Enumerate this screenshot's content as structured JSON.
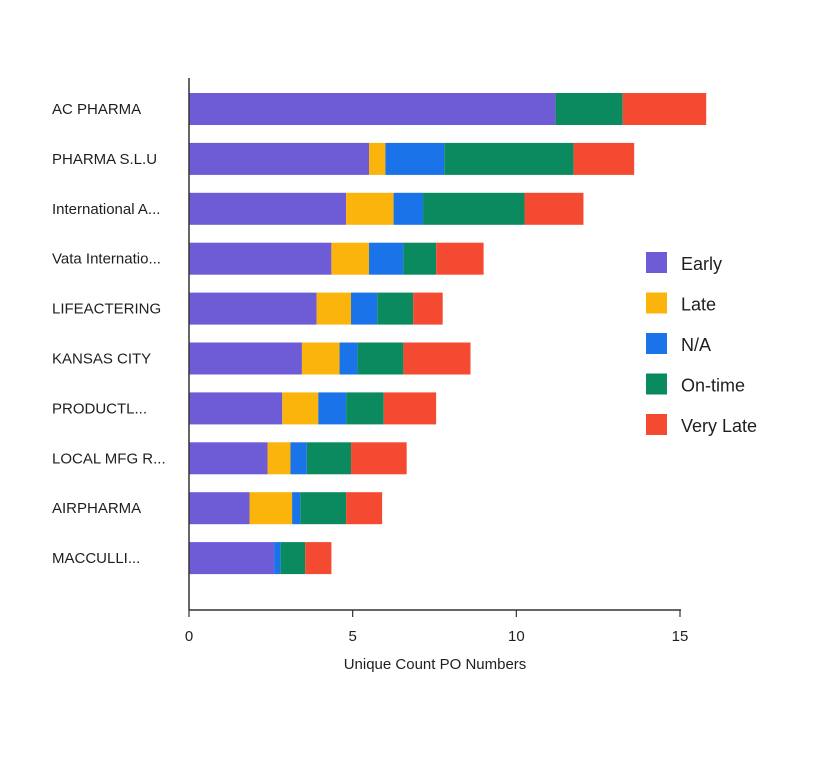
{
  "chart_data": {
    "type": "bar",
    "orientation": "horizontal",
    "stacked": true,
    "categories": [
      "AC PHARMA",
      "PHARMA S.L.U",
      "International A...",
      "Vata Internatio...",
      "LIFEACTERING",
      "KANSAS CITY",
      "PRODUCTL...",
      "LOCAL MFG R...",
      "AIRPHARMA",
      "MACCULLI..."
    ],
    "series": [
      {
        "name": "Early",
        "color": "#6e5bd6",
        "values": [
          11.2,
          5.5,
          4.8,
          4.35,
          3.9,
          3.45,
          2.85,
          2.4,
          1.85,
          2.6
        ]
      },
      {
        "name": "Late",
        "color": "#fbb40b",
        "values": [
          0,
          0.5,
          1.45,
          1.15,
          1.05,
          1.15,
          1.1,
          0.7,
          1.3,
          0
        ]
      },
      {
        "name": "N/A",
        "color": "#1a73e8",
        "values": [
          0,
          1.8,
          0.9,
          1.05,
          0.8,
          0.55,
          0.85,
          0.5,
          0.25,
          0.2
        ]
      },
      {
        "name": "On-time",
        "color": "#0b8a5f",
        "values": [
          2.05,
          3.95,
          3.1,
          1.0,
          1.1,
          1.4,
          1.15,
          1.35,
          1.4,
          0.75
        ]
      },
      {
        "name": "Very Late",
        "color": "#f44a31",
        "values": [
          2.55,
          1.85,
          1.8,
          1.45,
          0.9,
          2.05,
          1.6,
          1.7,
          1.1,
          0.8
        ]
      }
    ],
    "xlabel": "Unique Count PO Numbers",
    "ylabel": "",
    "xlim": [
      0,
      15.5
    ],
    "xticks": [
      0,
      5,
      10,
      15
    ],
    "grid": false,
    "legend_position": "right"
  }
}
